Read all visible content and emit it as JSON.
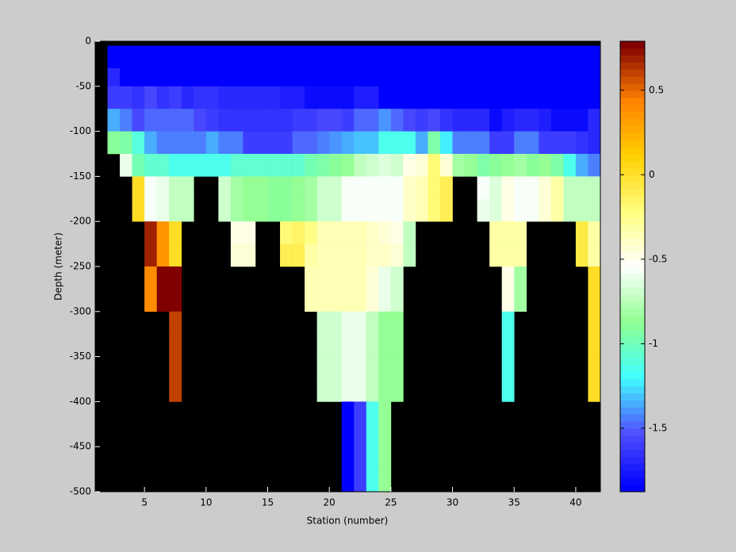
{
  "chart_data": {
    "type": "heatmap",
    "xlabel": "Station (number)",
    "ylabel": "Depth (meter)",
    "xlim": [
      1,
      42
    ],
    "ylim": [
      -500,
      0
    ],
    "xticks": [
      5,
      10,
      15,
      20,
      25,
      30,
      35,
      40
    ],
    "yticks": [
      0,
      -50,
      -100,
      -150,
      -200,
      -250,
      -300,
      -350,
      -400,
      -450,
      -500
    ],
    "clim": [
      -1.876,
      0.79
    ],
    "cticks": [
      0.5,
      0,
      -0.5,
      -1,
      -1.5
    ],
    "colormap": [
      "#0000ff",
      "#5050ff",
      "#40ffff",
      "#90ff90",
      "#ffffff",
      "#ffff80",
      "#ffd000",
      "#ff8000",
      "#800000"
    ],
    "levels": 64,
    "background": "#000000",
    "x_edges": [
      1,
      2,
      3,
      4,
      5,
      6,
      7,
      8,
      9,
      10,
      11,
      12,
      13,
      14,
      15,
      16,
      17,
      18,
      19,
      20,
      21,
      22,
      23,
      24,
      25,
      26,
      27,
      28,
      29,
      30,
      31,
      32,
      33,
      34,
      35,
      36,
      37,
      38,
      39,
      40,
      41,
      42
    ],
    "y_edges": [
      -5,
      -30,
      -50,
      -75,
      -100,
      -125,
      -150,
      -175,
      -200,
      -225,
      -250,
      -275,
      -300,
      -325,
      -350,
      -375,
      -400,
      -425,
      -450,
      -475,
      -500
    ],
    "z": [
      [
        null,
        -1.85,
        -1.85,
        -1.85,
        -1.85,
        -1.85,
        -1.85,
        -1.85,
        -1.85,
        -1.85,
        -1.85,
        -1.85,
        -1.85,
        -1.85,
        -1.85,
        -1.85,
        -1.85,
        -1.85,
        -1.85,
        -1.85,
        -1.85,
        -1.85,
        -1.85,
        -1.85,
        -1.85,
        -1.85,
        -1.85,
        -1.85,
        -1.85,
        -1.85,
        -1.85,
        -1.85,
        -1.85,
        -1.85,
        -1.85,
        -1.85,
        -1.85,
        -1.85,
        -1.85,
        -1.85,
        -1.85
      ],
      [
        null,
        -1.7,
        -1.85,
        -1.85,
        -1.85,
        -1.85,
        -1.85,
        -1.85,
        -1.85,
        -1.85,
        -1.85,
        -1.85,
        -1.85,
        -1.85,
        -1.85,
        -1.85,
        -1.85,
        -1.85,
        -1.85,
        -1.85,
        -1.85,
        -1.85,
        -1.85,
        -1.85,
        -1.85,
        -1.85,
        -1.85,
        -1.85,
        -1.85,
        -1.85,
        -1.85,
        -1.85,
        -1.85,
        -1.85,
        -1.85,
        -1.85,
        -1.85,
        -1.85,
        -1.85,
        -1.85,
        -1.85
      ],
      [
        null,
        -1.6,
        -1.6,
        -1.65,
        -1.55,
        -1.65,
        -1.6,
        -1.7,
        -1.65,
        -1.65,
        -1.7,
        -1.7,
        -1.7,
        -1.7,
        -1.7,
        -1.75,
        -1.75,
        -1.8,
        -1.8,
        -1.8,
        -1.8,
        -1.75,
        -1.75,
        -1.85,
        -1.85,
        -1.85,
        -1.85,
        -1.85,
        -1.85,
        -1.85,
        -1.85,
        -1.85,
        -1.85,
        -1.85,
        -1.85,
        -1.85,
        -1.85,
        -1.85,
        -1.85,
        -1.85,
        -1.85
      ],
      [
        null,
        -1.35,
        -1.45,
        -1.55,
        -1.5,
        -1.5,
        -1.5,
        -1.5,
        -1.55,
        -1.6,
        -1.65,
        -1.65,
        -1.65,
        -1.65,
        -1.65,
        -1.65,
        -1.6,
        -1.6,
        -1.55,
        -1.55,
        -1.6,
        -1.5,
        -1.5,
        -1.4,
        -1.5,
        -1.55,
        -1.6,
        -1.55,
        -1.65,
        -1.7,
        -1.7,
        -1.7,
        -1.8,
        -1.75,
        -1.7,
        -1.7,
        -1.75,
        -1.8,
        -1.8,
        -1.8,
        -1.7
      ],
      [
        null,
        -0.9,
        -0.95,
        -1.1,
        -1.35,
        -1.45,
        -1.45,
        -1.45,
        -1.45,
        -1.35,
        -1.45,
        -1.45,
        -1.6,
        -1.6,
        -1.6,
        -1.6,
        -1.5,
        -1.5,
        -1.45,
        -1.4,
        -1.35,
        -1.3,
        -1.3,
        -1.15,
        -1.15,
        -1.15,
        -1.35,
        -0.95,
        -1.25,
        -1.45,
        -1.45,
        -1.45,
        -1.6,
        -1.6,
        -1.45,
        -1.45,
        -1.6,
        -1.6,
        -1.6,
        -1.65,
        -1.7
      ],
      [
        null,
        null,
        -0.6,
        -1.0,
        -1.05,
        -1.05,
        -1.15,
        -1.15,
        -1.15,
        -1.15,
        -1.15,
        -1.05,
        -1.05,
        -1.05,
        -1.05,
        -1.05,
        -1.05,
        -1.0,
        -0.95,
        -0.9,
        -0.85,
        -0.75,
        -0.7,
        -0.65,
        -0.7,
        -0.5,
        -0.45,
        -0.2,
        -0.45,
        -0.8,
        -0.85,
        -0.95,
        -0.9,
        -0.85,
        -0.8,
        -0.9,
        -0.85,
        -0.95,
        -1.15,
        -1.35,
        -1.45
      ],
      [
        null,
        null,
        null,
        0.0,
        -0.55,
        -0.6,
        -0.75,
        -0.75,
        null,
        null,
        -0.7,
        -0.8,
        -0.85,
        -0.85,
        -0.9,
        -0.9,
        -0.85,
        -0.8,
        -0.7,
        -0.7,
        -0.55,
        -0.55,
        -0.55,
        -0.55,
        -0.55,
        -0.4,
        -0.35,
        -0.2,
        -0.1,
        null,
        null,
        -0.55,
        -0.65,
        -0.5,
        -0.55,
        -0.55,
        -0.45,
        -0.3,
        -0.75,
        -0.75,
        -0.75
      ],
      [
        null,
        null,
        null,
        0.0,
        -0.55,
        -0.6,
        -0.75,
        -0.75,
        null,
        null,
        -0.7,
        -0.8,
        -0.85,
        -0.85,
        -0.9,
        -0.9,
        -0.85,
        -0.8,
        -0.7,
        -0.7,
        -0.55,
        -0.55,
        -0.55,
        -0.55,
        -0.55,
        -0.4,
        -0.35,
        -0.2,
        -0.1,
        null,
        null,
        -0.6,
        -0.65,
        -0.5,
        -0.55,
        -0.55,
        -0.45,
        -0.3,
        -0.75,
        -0.75,
        -0.75
      ],
      [
        null,
        null,
        null,
        null,
        0.7,
        0.35,
        0.0,
        null,
        null,
        null,
        null,
        -0.5,
        -0.5,
        null,
        null,
        -0.2,
        -0.15,
        -0.25,
        -0.35,
        -0.35,
        -0.35,
        -0.35,
        -0.4,
        -0.45,
        -0.5,
        -0.75,
        null,
        null,
        null,
        null,
        null,
        null,
        -0.3,
        -0.3,
        -0.3,
        null,
        null,
        null,
        null,
        -0.05,
        -0.3
      ],
      [
        null,
        null,
        null,
        null,
        0.7,
        0.35,
        0.0,
        null,
        null,
        null,
        null,
        -0.45,
        -0.45,
        null,
        null,
        -0.1,
        -0.1,
        -0.3,
        -0.35,
        -0.35,
        -0.35,
        -0.35,
        -0.4,
        -0.4,
        -0.45,
        -0.75,
        null,
        null,
        null,
        null,
        null,
        null,
        -0.3,
        -0.3,
        -0.3,
        null,
        null,
        null,
        null,
        -0.05,
        -0.3
      ],
      [
        null,
        null,
        null,
        null,
        0.4,
        0.78,
        0.78,
        null,
        null,
        null,
        null,
        null,
        null,
        null,
        null,
        null,
        null,
        -0.35,
        -0.35,
        -0.35,
        -0.35,
        -0.35,
        -0.45,
        -0.6,
        -0.7,
        null,
        null,
        null,
        null,
        null,
        null,
        null,
        null,
        -0.5,
        -0.8,
        null,
        null,
        null,
        null,
        null,
        0.0
      ],
      [
        null,
        null,
        null,
        null,
        0.4,
        0.78,
        0.78,
        null,
        null,
        null,
        null,
        null,
        null,
        null,
        null,
        null,
        null,
        -0.35,
        -0.35,
        -0.35,
        -0.35,
        -0.35,
        -0.45,
        -0.6,
        -0.7,
        null,
        null,
        null,
        null,
        null,
        null,
        null,
        null,
        -0.5,
        -0.8,
        null,
        null,
        null,
        null,
        null,
        0.0
      ],
      [
        null,
        null,
        null,
        null,
        null,
        null,
        0.6,
        null,
        null,
        null,
        null,
        null,
        null,
        null,
        null,
        null,
        null,
        null,
        -0.7,
        -0.7,
        -0.6,
        -0.6,
        -0.75,
        -0.85,
        -0.85,
        null,
        null,
        null,
        null,
        null,
        null,
        null,
        null,
        -1.15,
        null,
        null,
        null,
        null,
        null,
        null,
        0.0
      ],
      [
        null,
        null,
        null,
        null,
        null,
        null,
        0.6,
        null,
        null,
        null,
        null,
        null,
        null,
        null,
        null,
        null,
        null,
        null,
        -0.7,
        -0.7,
        -0.6,
        -0.6,
        -0.75,
        -0.85,
        -0.85,
        null,
        null,
        null,
        null,
        null,
        null,
        null,
        null,
        -1.15,
        null,
        null,
        null,
        null,
        null,
        null,
        0.0
      ],
      [
        null,
        null,
        null,
        null,
        null,
        null,
        0.6,
        null,
        null,
        null,
        null,
        null,
        null,
        null,
        null,
        null,
        null,
        null,
        -0.7,
        -0.7,
        -0.6,
        -0.6,
        -0.75,
        -0.85,
        -0.85,
        null,
        null,
        null,
        null,
        null,
        null,
        null,
        null,
        -1.15,
        null,
        null,
        null,
        null,
        null,
        null,
        0.0
      ],
      [
        null,
        null,
        null,
        null,
        null,
        null,
        0.6,
        null,
        null,
        null,
        null,
        null,
        null,
        null,
        null,
        null,
        null,
        null,
        -0.7,
        -0.7,
        -0.6,
        -0.6,
        -0.75,
        -0.85,
        -0.85,
        null,
        null,
        null,
        null,
        null,
        null,
        null,
        null,
        -1.15,
        null,
        null,
        null,
        null,
        null,
        null,
        0.0
      ],
      [
        null,
        null,
        null,
        null,
        null,
        null,
        null,
        null,
        null,
        null,
        null,
        null,
        null,
        null,
        null,
        null,
        null,
        null,
        null,
        null,
        -1.85,
        -1.6,
        -1.15,
        -0.85,
        null,
        null,
        null,
        null,
        null,
        null,
        null,
        null,
        null,
        null,
        null,
        null,
        null,
        null,
        null,
        null,
        null
      ],
      [
        null,
        null,
        null,
        null,
        null,
        null,
        null,
        null,
        null,
        null,
        null,
        null,
        null,
        null,
        null,
        null,
        null,
        null,
        null,
        null,
        -1.85,
        -1.6,
        -1.15,
        -0.85,
        null,
        null,
        null,
        null,
        null,
        null,
        null,
        null,
        null,
        null,
        null,
        null,
        null,
        null,
        null,
        null,
        null
      ],
      [
        null,
        null,
        null,
        null,
        null,
        null,
        null,
        null,
        null,
        null,
        null,
        null,
        null,
        null,
        null,
        null,
        null,
        null,
        null,
        null,
        -1.85,
        -1.6,
        -1.15,
        -0.85,
        null,
        null,
        null,
        null,
        null,
        null,
        null,
        null,
        null,
        null,
        null,
        null,
        null,
        null,
        null,
        null,
        null
      ],
      [
        null,
        null,
        null,
        null,
        null,
        null,
        null,
        null,
        null,
        null,
        null,
        null,
        null,
        null,
        null,
        null,
        null,
        null,
        null,
        null,
        -1.85,
        -1.6,
        -1.15,
        -0.85,
        null,
        null,
        null,
        null,
        null,
        null,
        null,
        null,
        null,
        null,
        null,
        null,
        null,
        null,
        null,
        null,
        null
      ]
    ]
  }
}
